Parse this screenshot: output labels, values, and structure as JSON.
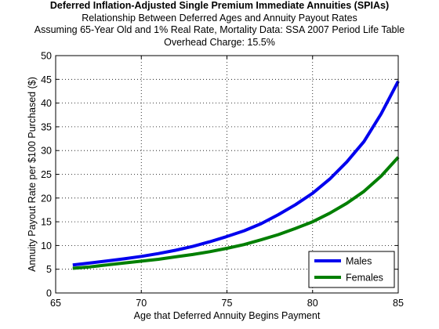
{
  "chart_data": {
    "type": "line",
    "title": "Deferred Inflation-Adjusted Single Premium Immediate Annuities (SPIAs)",
    "subtitles": [
      "Relationship Between Deferred Ages and Annuity Payout Rates",
      "Assuming 65-Year Old and 1% Real Rate, Mortality Data: SSA 2007 Period Life Table",
      "Overhead Charge: 15.5%"
    ],
    "xlabel": "Age that Deferred Annuity Begins Payment",
    "ylabel": "Annuity Payout Rate per $100 Purchased ($)",
    "xlim": [
      65,
      85
    ],
    "ylim": [
      0,
      50
    ],
    "xticks": [
      65,
      70,
      75,
      80,
      85
    ],
    "yticks": [
      0,
      5,
      10,
      15,
      20,
      25,
      30,
      35,
      40,
      45,
      50
    ],
    "grid": true,
    "legend_position": "bottom-right",
    "x": [
      66,
      67,
      68,
      69,
      70,
      71,
      72,
      73,
      74,
      75,
      76,
      77,
      78,
      79,
      80,
      81,
      82,
      83,
      84,
      85
    ],
    "series": [
      {
        "name": "Males",
        "color": "#0000ee",
        "values": [
          5.9,
          6.3,
          6.75,
          7.2,
          7.7,
          8.3,
          9.0,
          9.8,
          10.8,
          11.9,
          13.1,
          14.6,
          16.5,
          18.6,
          21.0,
          24.0,
          27.6,
          31.9,
          37.7,
          44.6
        ]
      },
      {
        "name": "Females",
        "color": "#007f00",
        "values": [
          5.2,
          5.5,
          5.9,
          6.3,
          6.7,
          7.1,
          7.6,
          8.1,
          8.7,
          9.4,
          10.2,
          11.2,
          12.3,
          13.6,
          15.0,
          16.8,
          18.9,
          21.4,
          24.6,
          28.6
        ]
      }
    ]
  }
}
